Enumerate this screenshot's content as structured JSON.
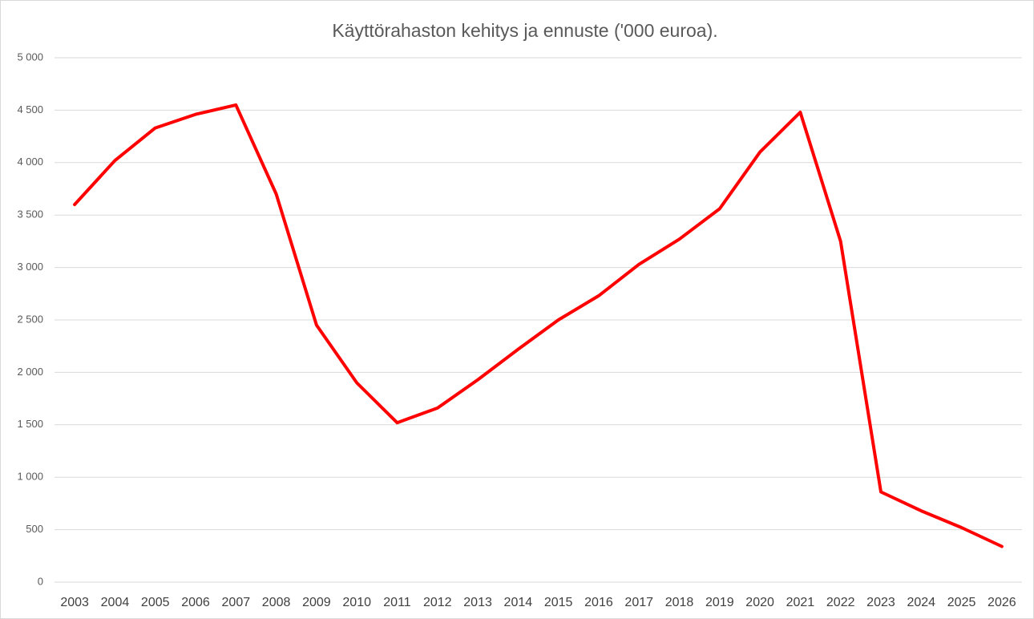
{
  "chart_data": {
    "type": "line",
    "title": "Käyttörahaston kehitys ja ennuste ('000 euroa).",
    "categories": [
      "2003",
      "2004",
      "2005",
      "2006",
      "2007",
      "2008",
      "2009",
      "2010",
      "2011",
      "2012",
      "2013",
      "2014",
      "2015",
      "2016",
      "2017",
      "2018",
      "2019",
      "2020",
      "2021",
      "2022",
      "2023",
      "2024",
      "2025",
      "2026"
    ],
    "series": [
      {
        "color": "#ff0000",
        "values": [
          3600,
          4020,
          4330,
          4460,
          4550,
          3700,
          2450,
          1900,
          1520,
          1660,
          1930,
          2220,
          2500,
          2730,
          3030,
          3270,
          3560,
          4100,
          4480,
          3250,
          860,
          680,
          520,
          340
        ]
      }
    ],
    "ylim": [
      0,
      5000
    ],
    "yticks": [
      0,
      500,
      {
        "value": 1000,
        "label": "1 000"
      },
      {
        "value": 1500,
        "label": "1 500"
      },
      {
        "value": 2000,
        "label": "2 000"
      },
      {
        "value": 2500,
        "label": "2 500"
      },
      {
        "value": 3000,
        "label": "3 000"
      },
      {
        "value": 3500,
        "label": "3 500"
      },
      {
        "value": 4000,
        "label": "4 000"
      },
      {
        "value": 4500,
        "label": "4 500"
      },
      {
        "value": 5000,
        "label": "5 000"
      }
    ],
    "grid": true
  }
}
